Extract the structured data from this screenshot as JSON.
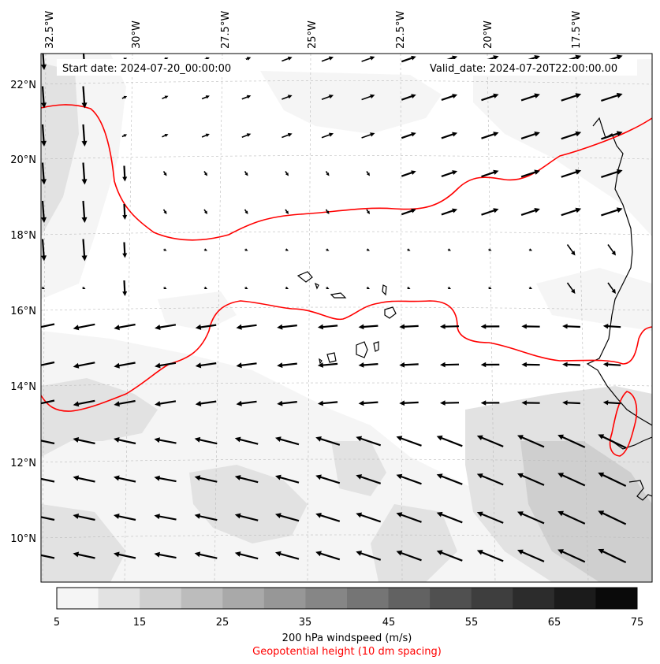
{
  "map": {
    "start_date": "Start date: 2024-07-20_00:00:00",
    "valid_date": "Valid_date: 2024-07-20T22:00:00.00",
    "lon_labels": [
      "32.5°W",
      "30°W",
      "27.5°W",
      "25°W",
      "22.5°W",
      "20°W",
      "17.5°W"
    ],
    "lat_labels": [
      "22°N",
      "20°N",
      "18°N",
      "16°N",
      "14°N",
      "12°N",
      "10°N"
    ]
  },
  "colorbar": {
    "ticks": [
      "5",
      "15",
      "25",
      "35",
      "45",
      "55",
      "65",
      "75"
    ],
    "colors": [
      "#f5f5f5",
      "#e2e2e2",
      "#cfcfcf",
      "#bcbcbc",
      "#a9a9a9",
      "#979797",
      "#868686",
      "#757575",
      "#626262",
      "#505050",
      "#3e3e3e",
      "#2c2c2c",
      "#1b1b1b",
      "#0a0a0a"
    ],
    "label": "200 hPa windspeed (m/s)",
    "sublabel": "Geopotential height (10 dm spacing)",
    "sublabel_color": "#ff0000"
  },
  "contour_color": "#ff0000"
}
